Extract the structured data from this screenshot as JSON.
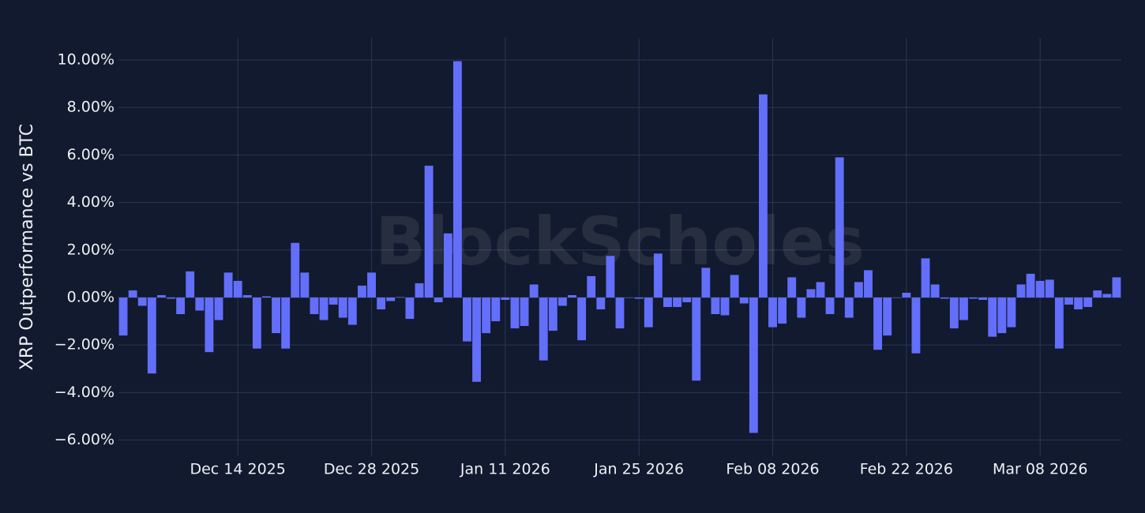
{
  "chart_data": {
    "type": "bar",
    "y_label": "XRP Outperformance vs BTC",
    "watermark": "BlockScholes",
    "color": "#636efa",
    "grid": true,
    "x": [
      "2025-12-02",
      "2025-12-03",
      "2025-12-04",
      "2025-12-05",
      "2025-12-06",
      "2025-12-07",
      "2025-12-08",
      "2025-12-09",
      "2025-12-10",
      "2025-12-11",
      "2025-12-12",
      "2025-12-13",
      "2025-12-14",
      "2025-12-15",
      "2025-12-16",
      "2025-12-17",
      "2025-12-18",
      "2025-12-19",
      "2025-12-20",
      "2025-12-21",
      "2025-12-22",
      "2025-12-23",
      "2025-12-24",
      "2025-12-25",
      "2025-12-26",
      "2025-12-27",
      "2025-12-28",
      "2025-12-29",
      "2025-12-30",
      "2025-12-31",
      "2026-01-01",
      "2026-01-02",
      "2026-01-03",
      "2026-01-04",
      "2026-01-05",
      "2026-01-06",
      "2026-01-07",
      "2026-01-08",
      "2026-01-09",
      "2026-01-10",
      "2026-01-11",
      "2026-01-12",
      "2026-01-13",
      "2026-01-14",
      "2026-01-15",
      "2026-01-16",
      "2026-01-17",
      "2026-01-18",
      "2026-01-19",
      "2026-01-20",
      "2026-01-21",
      "2026-01-22",
      "2026-01-23",
      "2026-01-24",
      "2026-01-25",
      "2026-01-26",
      "2026-01-27",
      "2026-01-28",
      "2026-01-29",
      "2026-01-30",
      "2026-01-31",
      "2026-02-01",
      "2026-02-02",
      "2026-02-03",
      "2026-02-04",
      "2026-02-05",
      "2026-02-06",
      "2026-02-07",
      "2026-02-08",
      "2026-02-09",
      "2026-02-10",
      "2026-02-11",
      "2026-02-12",
      "2026-02-13",
      "2026-02-14",
      "2026-02-15",
      "2026-02-16",
      "2026-02-17",
      "2026-02-18",
      "2026-02-19",
      "2026-02-20",
      "2026-02-21",
      "2026-02-22",
      "2026-02-23",
      "2026-02-24",
      "2026-02-25",
      "2026-02-26",
      "2026-02-27",
      "2026-02-28",
      "2026-03-01",
      "2026-03-02",
      "2026-03-03",
      "2026-03-04",
      "2026-03-05",
      "2026-03-06",
      "2026-03-07",
      "2026-03-08",
      "2026-03-09",
      "2026-03-10",
      "2026-03-11",
      "2026-03-12",
      "2026-03-13",
      "2026-03-14",
      "2026-03-15",
      "2026-03-16"
    ],
    "values": [
      -1.6,
      0.3,
      -0.35,
      -3.2,
      0.1,
      -0.05,
      -0.7,
      1.1,
      -0.55,
      -2.3,
      -0.95,
      1.05,
      0.7,
      0.1,
      -2.15,
      0.05,
      -1.5,
      -2.15,
      2.3,
      1.05,
      -0.7,
      -0.95,
      -0.3,
      -0.85,
      -1.15,
      0.5,
      1.05,
      -0.5,
      -0.15,
      0.02,
      -0.9,
      0.6,
      5.55,
      -0.2,
      2.7,
      9.95,
      -1.85,
      -3.55,
      -1.5,
      -1.0,
      -0.1,
      -1.3,
      -1.2,
      0.55,
      -2.65,
      -1.4,
      -0.35,
      0.1,
      -1.8,
      0.9,
      -0.5,
      1.75,
      -1.3,
      0.0,
      -0.05,
      -1.25,
      1.85,
      -0.4,
      -0.4,
      -0.2,
      -3.5,
      1.25,
      -0.7,
      -0.75,
      0.95,
      -0.25,
      -5.7,
      8.55,
      -1.25,
      -1.1,
      0.85,
      -0.85,
      0.35,
      0.65,
      -0.7,
      5.9,
      -0.85,
      0.65,
      1.15,
      -2.2,
      -1.6,
      0.0,
      0.2,
      -2.35,
      1.65,
      0.55,
      -0.05,
      -1.3,
      -0.95,
      -0.05,
      -0.1,
      -1.65,
      -1.5,
      -1.25,
      0.55,
      1.0,
      0.7,
      0.75,
      -2.15,
      -0.3,
      -0.5,
      -0.4,
      0.3,
      0.15,
      0.85
    ],
    "xlim": [
      "2025-12-01T12:00Z",
      "2026-03-16T12:00Z"
    ],
    "xticks": [
      {
        "value": "2025-12-14",
        "label": "Dec 14 2025"
      },
      {
        "value": "2025-12-28",
        "label": "Dec 28 2025"
      },
      {
        "value": "2026-01-11",
        "label": "Jan 11 2026"
      },
      {
        "value": "2026-01-25",
        "label": "Jan 25 2026"
      },
      {
        "value": "2026-02-08",
        "label": "Feb 08 2026"
      },
      {
        "value": "2026-02-22",
        "label": "Feb 22 2026"
      },
      {
        "value": "2026-03-08",
        "label": "Mar 08 2026"
      }
    ],
    "ylim": [
      -6.68,
      10.93
    ],
    "yticks": [
      {
        "value": -6,
        "label": "−6.00%"
      },
      {
        "value": -4,
        "label": "−4.00%"
      },
      {
        "value": -2,
        "label": "−2.00%"
      },
      {
        "value": 0,
        "label": "0.00%"
      },
      {
        "value": 2,
        "label": "2.00%"
      },
      {
        "value": 4,
        "label": "4.00%"
      },
      {
        "value": 6,
        "label": "6.00%"
      },
      {
        "value": 8,
        "label": "8.00%"
      },
      {
        "value": 10,
        "label": "10.00%"
      }
    ]
  }
}
